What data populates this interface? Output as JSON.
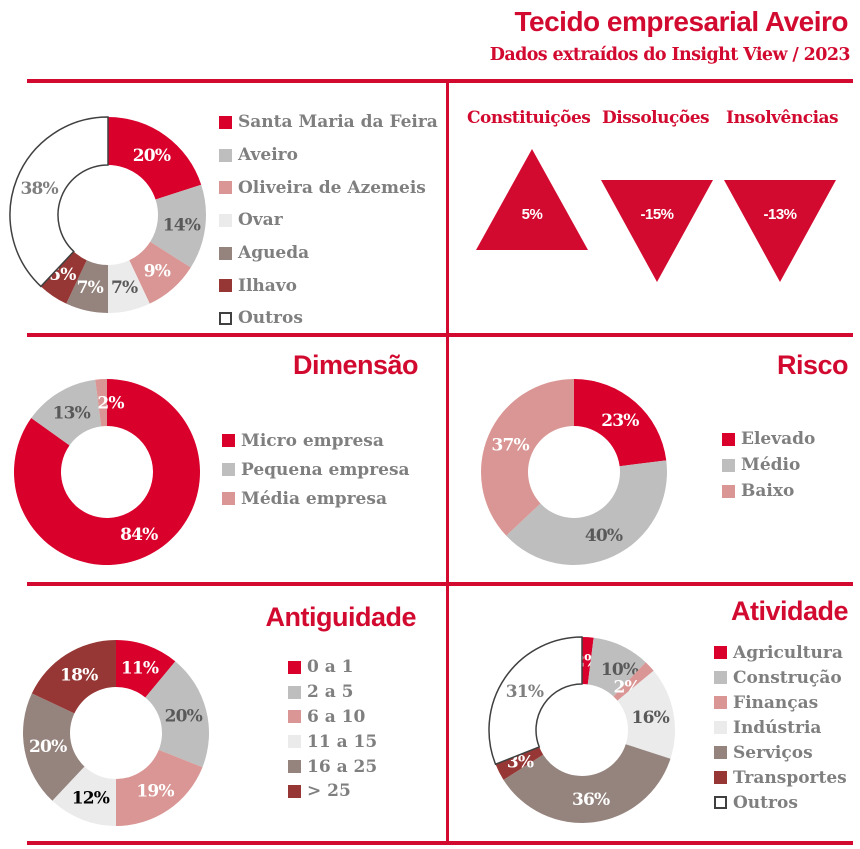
{
  "header": {
    "title": "Tecido empresarial Aveiro",
    "subtitle": "Dados extraídos do Insight View / 2023"
  },
  "colors": {
    "accent": "#D20A30",
    "red": "#D9002B",
    "grey": "#BEBEBE",
    "pink": "#D99694",
    "light": "#EBEBEB",
    "taupe": "#95847E",
    "darkred": "#963735",
    "outline": "#404040",
    "legend_text": "#7F7F7F"
  },
  "kpis": [
    {
      "label": "Constituições",
      "value": "5%",
      "direction": "up"
    },
    {
      "label": "Dissoluções",
      "value": "-15%",
      "direction": "down"
    },
    {
      "label": "Insolvências",
      "value": "-13%",
      "direction": "down"
    }
  ],
  "chart_data": [
    {
      "id": "municipios",
      "type": "pie",
      "variant": "donut",
      "title": "",
      "categories": [
        "Santa Maria da Feira",
        "Aveiro",
        "Oliveira de Azemeis",
        "Ovar",
        "Agueda",
        "Ilhavo",
        "Outros"
      ],
      "values": [
        20,
        14,
        9,
        7,
        7,
        5,
        38
      ],
      "labels": [
        "20%",
        "14%",
        "9%",
        "7%",
        "7%",
        "5%",
        "38%"
      ],
      "colors": [
        "red",
        "grey",
        "pink",
        "light",
        "taupe",
        "darkred",
        "outline"
      ],
      "label_colors": [
        "#FFFFFF",
        "#595959",
        "#FFFFFF",
        "#595959",
        "#FFFFFF",
        "#FFFFFF",
        "#7F7F7F"
      ],
      "legend": "right"
    },
    {
      "id": "dimensao",
      "type": "pie",
      "variant": "donut",
      "title": "Dimensão",
      "categories": [
        "Micro empresa",
        "Pequena empresa",
        "Média empresa"
      ],
      "values": [
        84,
        13,
        2
      ],
      "labels": [
        "84%",
        "13%",
        "2%"
      ],
      "colors": [
        "red",
        "grey",
        "pink"
      ],
      "label_colors": [
        "#FFFFFF",
        "#595959",
        "#FFFFFF"
      ],
      "legend": "right"
    },
    {
      "id": "risco",
      "type": "pie",
      "variant": "donut",
      "title": "Risco",
      "categories": [
        "Elevado",
        "Médio",
        "Baixo"
      ],
      "values": [
        23,
        40,
        37
      ],
      "labels": [
        "23%",
        "40%",
        "37%"
      ],
      "colors": [
        "red",
        "grey",
        "pink"
      ],
      "label_colors": [
        "#FFFFFF",
        "#595959",
        "#FFFFFF"
      ],
      "legend": "right"
    },
    {
      "id": "antiguidade",
      "type": "pie",
      "variant": "donut",
      "title": "Antiguidade",
      "categories": [
        "0 a 1",
        "2 a 5",
        "6 a 10",
        "11 a 15",
        "16 a 25",
        "> 25"
      ],
      "values": [
        11,
        20,
        19,
        12,
        20,
        18
      ],
      "labels": [
        "11%",
        "20%",
        "19%",
        "12%",
        "20%",
        "18%"
      ],
      "colors": [
        "red",
        "grey",
        "pink",
        "light",
        "taupe",
        "darkred"
      ],
      "label_colors": [
        "#FFFFFF",
        "#595959",
        "#FFFFFF",
        "#000000",
        "#FFFFFF",
        "#FFFFFF"
      ],
      "legend": "right"
    },
    {
      "id": "atividade",
      "type": "pie",
      "variant": "donut",
      "title": "Atividade",
      "categories": [
        "Agricultura",
        "Construção",
        "Finanças",
        "Indústria",
        "Serviços",
        "Transportes",
        "Outros"
      ],
      "values": [
        2,
        10,
        2,
        16,
        36,
        3,
        31
      ],
      "labels": [
        "2%",
        "10%",
        "2%",
        "16%",
        "36%",
        "3%",
        "31%"
      ],
      "colors": [
        "red",
        "grey",
        "pink",
        "light",
        "taupe",
        "darkred",
        "outline"
      ],
      "label_colors": [
        "#FFFFFF",
        "#595959",
        "#FFFFFF",
        "#595959",
        "#FFFFFF",
        "#FFFFFF",
        "#7F7F7F"
      ],
      "legend": "right"
    }
  ]
}
